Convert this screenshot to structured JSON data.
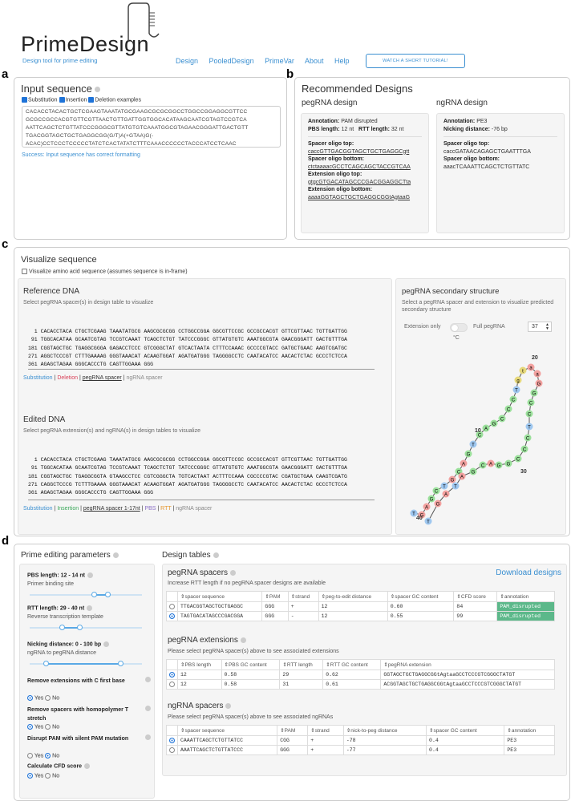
{
  "header": {
    "logo": "PrimeDesign",
    "tagline": "Design tool for prime editing",
    "nav": [
      "Design",
      "PooledDesign",
      "PrimeVar",
      "About",
      "Help"
    ],
    "tutorial": "WATCH A SHORT TUTORIAL!"
  },
  "letters": {
    "a": "a",
    "b": "b",
    "c": "c",
    "d": "d"
  },
  "input": {
    "title": "Input sequence",
    "opts": [
      "Substitution",
      "Insertion",
      "Deletion examples"
    ],
    "lines": [
      "CACACCTACACTGCTCGAAGTAAATATGCGAAGCGCGCGGCCTGGCCGGAGGCGTTCC",
      "GCGCCGCCACGTGTTCGTTAACTGTTGATTGGTGGCACATAAGCAATCGTAGTCCGTCA",
      "AATTCAGCTCTGTTATCCCGGGCGTTATGTGTCAAATGGCGTAGAACGGGATTGACTGTT",
      "TGACGGTAGCTGCTGAGGCGG(G/T)A(+GTAA)G(-",
      "ACAC)CCTCCCTCCCCCTATCTCACTATATCTTTCAAACCCCCCTACCCATCCTCAAC"
    ],
    "status": "Success: Input sequence has correct formatting"
  },
  "recommended": {
    "title": "Recommended Designs",
    "peg_title": "pegRNA design",
    "ng_title": "ngRNA design",
    "peg": {
      "annotation_lbl": "Annotation:",
      "annotation": "PAM disrupted",
      "pbs_lbl": "PBS length:",
      "pbs": "12 nt",
      "rtt_lbl": "RTT length:",
      "rtt": "32 nt",
      "st_lbl": "Spacer oligo top:",
      "st": "caccGTTGACGGTAGCTGCTGAGGCgtt",
      "sb_lbl": "Spacer oligo bottom:",
      "sb": "ctctaaaacGCCTCAGCAGCTACCGTCAA",
      "et_lbl": "Extension oligo top:",
      "et": "gtgcGTGACATAGCCCGACGGAGGCTta",
      "eb_lbl": "Extension oligo bottom:",
      "eb": "aaaaGGTAGCTGCTGAGGCGGtAgtaaG"
    },
    "ng": {
      "annotation_lbl": "Annotation:",
      "annotation": "PE3",
      "nick_lbl": "Nicking distance:",
      "nick": "-76 bp",
      "st_lbl": "Spacer oligo top:",
      "st": "caccGATAACAGAGCTGAATTTGA",
      "sb_lbl": "Spacer oligo bottom:",
      "sb": "aaacTCAAATTCAGCTCTGTTATC"
    }
  },
  "visualize": {
    "title": "Visualize sequence",
    "aa": "Visualize amino acid sequence (assumes sequence is in-frame)",
    "ref_title": "Reference DNA",
    "ref_sub": "Select pegRNA spacer(s) in design table to visualize",
    "ref_lines": [
      [
        "1",
        "CACACCTACA CTGCTCGAAG TAAATATGCG AAGCGCGCGG CCTGGCCGGA GGCGTTCCGC GCCGCCACGT GTTCGTTAAC TGTTGATTGG"
      ],
      [
        "91",
        "TGGCACATAA GCAATCGTAG TCCGTCAAAT TCAGCTCTGT TATCCCGGGC GTTATGTGTC AAATGGCGTA GAACGGGATT GACTGTTTGA"
      ],
      [
        "181",
        "CGGTAGCTGC TGAGGCGGGA GAGACCTCCC GTCGGGCTAT GTCACTAATA CTTTCCAAAC GCCCCGTACC GATGCTGAAC AAGTCGATGC"
      ],
      [
        "271",
        "AGGCTCCCGT CTTTGAAAAG GGGTAAACAT ACAAGTGGAT AGATGATGGG TAGGGGCCTC CAATACATCC AACACTCTAC GCCCTCTCCA"
      ],
      [
        "361",
        "AGAGCTAGAA GGGCACCCTG CAGTTGGAAA GGG"
      ]
    ],
    "ref_legend": [
      "Substitution",
      "Deletion",
      "pegRNA spacer",
      "ngRNA spacer"
    ],
    "edit_title": "Edited DNA",
    "edit_sub": "Select pegRNA extension(s) and ngRNA(s) in design tables to visualize",
    "edit_lines": [
      [
        "1",
        "CACACCTACA CTGCTCGAAG TAAATATGCG AAGCGCGCGG CCTGGCCGGA GGCGTTCCGC GCCGCCACGT GTTCGTTAAC TGTTGATTGG"
      ],
      [
        "91",
        "TGGCACATAA GCAATCGTAG TCCGTCAAAT TCAGCTCTGT TATCCCGGGC GTTATGTGTC AAATGGCGTA GAACGGGATT GACTGTTTGA"
      ],
      [
        "181",
        "CGGTAGCTGC TGAGGCGGTA GTAAGCCTCC CGTCGGGCTA TGTCACTAAT ACTTTCCAAA CGCCCCGTAC CGATGCTGAA CAAGTCGATG"
      ],
      [
        "271",
        "CAGGCTCCCG TCTTTGAAAA GGGTAAACAT ACAAGTGGAT AGATGATGGG TAGGGGCCTC CAATACATCC AACACTCTAC GCCCTCTCCA"
      ],
      [
        "361",
        "AGAGCTAGAA GGGCACCCTG CAGTTGGAAA GGG"
      ]
    ],
    "edit_legend": [
      "Substitution",
      "Insertion",
      "pegRNA spacer 1-17nt",
      "PBS",
      "RTT",
      "ngRNA spacer"
    ],
    "struct_title": "pegRNA secondary structure",
    "struct_sub": "Select a pegRNA spacer and extension to visualize predicted secondary structure",
    "ext_only": "Extension only",
    "full": "Full pegRNA",
    "temp": "37",
    "unit": "°C",
    "nums": [
      "20",
      "10",
      "30",
      "40"
    ]
  },
  "params": {
    "title": "Prime editing parameters",
    "pbs": "PBS length: 12 - 14 nt",
    "pbs_sub": "Primer binding site",
    "rtt": "RTT length: 29 - 40 nt",
    "rtt_sub": "Reverse transcription template",
    "nick": "Nicking distance: 0 - 100 bp",
    "nick_sub": "ngRNA to pegRNA distance",
    "c_first": "Remove extensions with C first base",
    "homo": "Remove spacers with homopolymer T stretch",
    "pam": "Disrupt PAM with silent PAM mutation",
    "cfd": "Calculate CFD score",
    "yes": "Yes",
    "no": "No"
  },
  "tables": {
    "title": "Design tables",
    "download": "Download designs",
    "spacers_title": "pegRNA spacers",
    "spacers_sub": "Increase RTT length if no pegRNA spacer designs are available",
    "spacers_head": [
      "spacer sequence",
      "PAM",
      "strand",
      "peg-to-edit distance",
      "spacer GC content",
      "CFD score",
      "annotation"
    ],
    "spacers_rows": [
      [
        "TTGACGGTAGCTGCTGAGGC",
        "GGG",
        "+",
        "12",
        "0.60",
        "84",
        "PAM_disrupted"
      ],
      [
        "TAGTGACATAGCCCGACGGA",
        "GGG",
        "-",
        "12",
        "0.55",
        "99",
        "PAM_disrupted"
      ]
    ],
    "ext_title": "pegRNA extensions",
    "ext_sub": "Please select pegRNA spacer(s) above to see associated extensions",
    "ext_head": [
      "PBS length",
      "PBS GC content",
      "RTT length",
      "RTT GC content",
      "pegRNA extension"
    ],
    "ext_rows": [
      [
        "12",
        "0.58",
        "29",
        "0.62",
        "GGTAGCTGCTGAGGCGGtAgtaaGCCTCCCGTCGGGCTATGT"
      ],
      [
        "12",
        "0.58",
        "31",
        "0.61",
        "ACGGTAGCTGCTGAGGCGGtAgtaaGCCTCCCGTCGGGCTATGT"
      ]
    ],
    "ng_title": "ngRNA spacers",
    "ng_sub": "Please select pegRNA spacer(s) above to see associated ngRNAs",
    "ng_head": [
      "spacer sequence",
      "PAM",
      "strand",
      "nick-to-peg distance",
      "spacer GC content",
      "annotation"
    ],
    "ng_rows": [
      [
        "CAAATTCAGCTCTGTTATCC",
        "CGG",
        "+",
        "-78",
        "0.4",
        "PE3"
      ],
      [
        "AAATTCAGCTCTGTTATCCC",
        "GGG",
        "+",
        "-77",
        "0.4",
        "PE3"
      ]
    ]
  }
}
